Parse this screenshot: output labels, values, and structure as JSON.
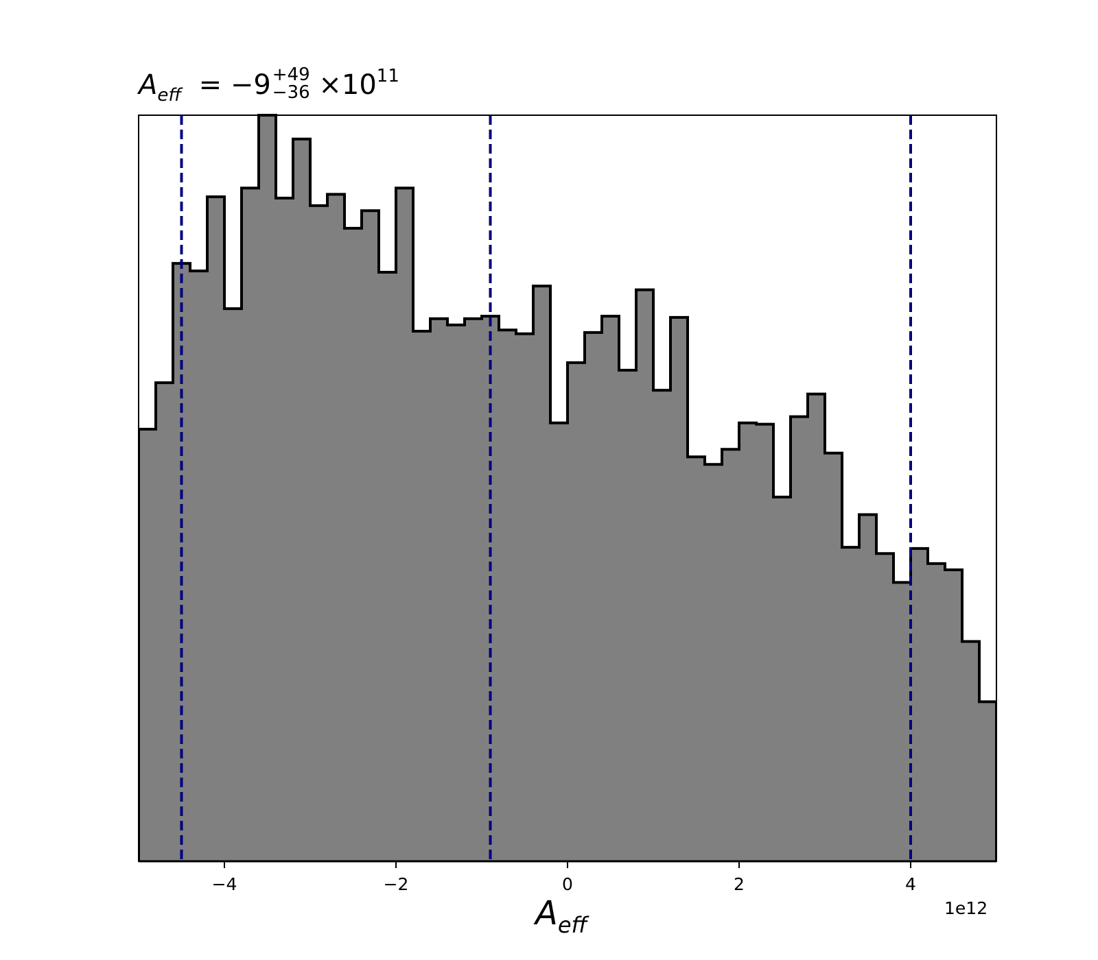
{
  "chart_data": {
    "type": "histogram",
    "title": {
      "variable": "A",
      "variable_sub": "eff",
      "equals": "=",
      "median": "−9",
      "upper_err": "+49",
      "lower_err": "−36",
      "times": "×",
      "base": "10",
      "exponent": "11"
    },
    "xlabel": {
      "main": "A",
      "sub": "eff"
    },
    "x_offset_label": "1e12",
    "xlim": [
      -5000000000000.0,
      5000000000000.0
    ],
    "ylim": [
      0,
      2970
    ],
    "x_ticks": [
      -4000000000000.0,
      -2000000000000.0,
      0,
      2000000000000.0,
      4000000000000.0
    ],
    "x_tick_labels": [
      "−4",
      "−2",
      "0",
      "2",
      "4"
    ],
    "y_axis_visible": false,
    "bin_edges": [
      -5000000000000.0,
      -4800000000000.0,
      -4600000000000.0,
      -4400000000000.0,
      -4200000000000.0,
      -4000000000000.0,
      -3800000000000.0,
      -3600000000000.0,
      -3400000000000.0,
      -3200000000000.0,
      -3000000000000.0,
      -2800000000000.0,
      -2600000000000.0,
      -2400000000000.0,
      -2200000000000.0,
      -2000000000000.0,
      -1800000000000.0,
      -1600000000000.0,
      -1400000000000.0,
      -1200000000000.0,
      -1000000000000.0,
      -800000000000.0,
      -600000000000.0,
      -400000000000.0,
      -200000000000.0,
      0.0,
      200000000000.0,
      400000000000.0,
      600000000000.0,
      800000000000.0,
      1000000000000.0,
      1200000000000.0,
      1400000000000.0,
      1600000000000.0,
      1800000000000.0,
      2000000000000.0,
      2200000000000.0,
      2400000000000.0,
      2600000000000.0,
      2800000000000.0,
      3000000000000.0,
      3200000000000.0,
      3400000000000.0,
      3600000000000.0,
      3800000000000.0,
      4000000000000.0,
      4200000000000.0,
      4400000000000.0,
      4600000000000.0,
      4800000000000.0,
      5000000000000.0
    ],
    "counts": [
      1720,
      1905,
      2380,
      2350,
      2645,
      2200,
      2680,
      2970,
      2640,
      2875,
      2610,
      2655,
      2520,
      2590,
      2345,
      2680,
      2110,
      2160,
      2135,
      2160,
      2170,
      2115,
      2100,
      2290,
      1745,
      1985,
      2105,
      2170,
      1955,
      2275,
      1875,
      2165,
      1610,
      1580,
      1640,
      1745,
      1740,
      1450,
      1770,
      1860,
      1625,
      1250,
      1380,
      1225,
      1110,
      1245,
      1185,
      1160,
      875,
      635
    ],
    "fill_color": "#808080",
    "edge_color": "#000000",
    "vlines": [
      {
        "x": -4500000000000.0,
        "color": "#000080",
        "style": "dashed"
      },
      {
        "x": -900000000000.0,
        "color": "#000080",
        "style": "dashed"
      },
      {
        "x": 4000000000000.0,
        "color": "#000080",
        "style": "dashed"
      }
    ]
  }
}
